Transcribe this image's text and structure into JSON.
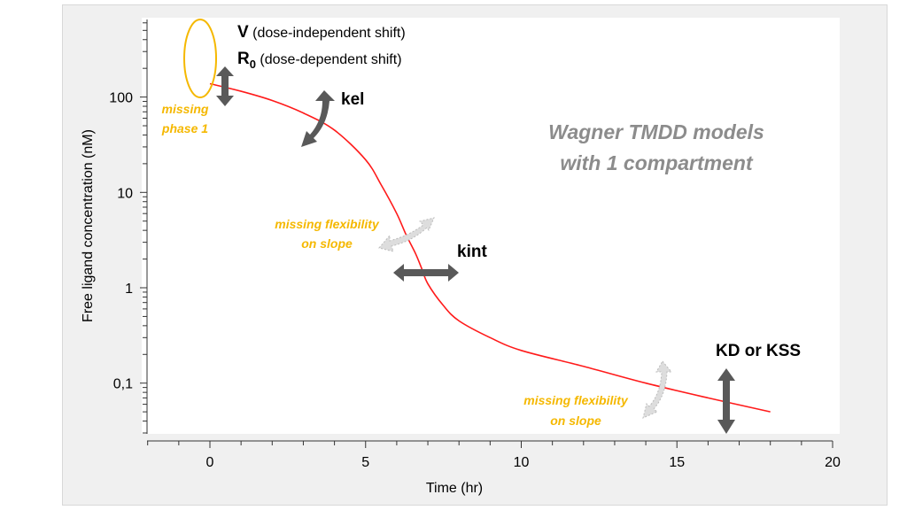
{
  "chart_data": {
    "type": "line",
    "title": "Wagner TMDD models with 1 compartment",
    "title_lines": [
      "Wagner TMDD models",
      "with 1 compartment"
    ],
    "xlabel": "Time (hr)",
    "ylabel": "Free ligand concentration (nM)",
    "xlim": [
      -2.2,
      20
    ],
    "ylim": [
      0.03,
      650
    ],
    "yscale": "log",
    "grid": false,
    "xticks": [
      "0",
      "5",
      "10",
      "15",
      "20"
    ],
    "yticks": [
      "100",
      "10",
      "1",
      "0,1"
    ],
    "series": [
      {
        "color": "#ff1a1a",
        "x": [
          0,
          1,
          2,
          3,
          4,
          5,
          5.5,
          6,
          6.3,
          6.6,
          6.8,
          7,
          7.5,
          8,
          9,
          10,
          12,
          14,
          16,
          18
        ],
        "y": [
          138,
          115,
          92,
          68,
          45,
          22,
          12,
          6,
          3.6,
          2.3,
          1.6,
          1.1,
          0.65,
          0.45,
          0.3,
          0.22,
          0.15,
          0.1,
          0.07,
          0.05
        ]
      }
    ]
  },
  "annotations": {
    "v_label": "V",
    "v_desc": "(dose-independent shift)",
    "r0_label": "R",
    "r0_sub": "0",
    "r0_desc": "(dose-dependent shift)",
    "missing_phase": [
      "missing",
      "phase 1"
    ],
    "kel": "kel",
    "kint": "kint",
    "kd": "KD or KSS",
    "flex1": [
      "missing flexibility",
      "on slope"
    ],
    "flex2": [
      "missing flexibility",
      "on slope"
    ]
  },
  "colors": {
    "accent": "#f5b800",
    "arrow": "#595959",
    "curve": "#ff1a1a",
    "title": "#8c8c8c"
  }
}
